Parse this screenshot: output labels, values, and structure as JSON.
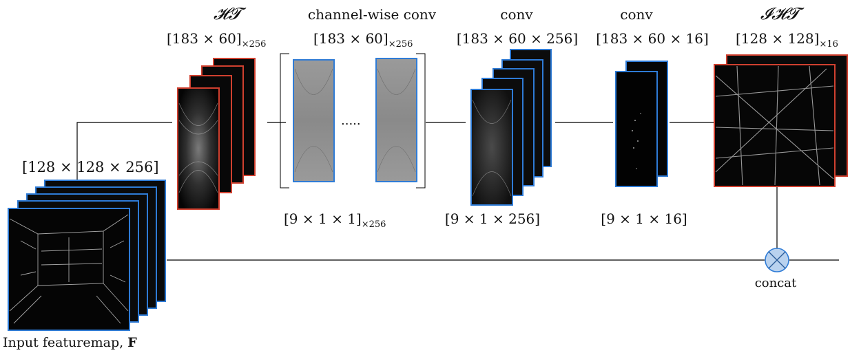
{
  "input": {
    "dims": "[128 × 128 × 256]",
    "caption": "Input featuremap, ",
    "caption_bold": "F"
  },
  "ht": {
    "title": "𝓗𝓣",
    "dims_main": "[183 × 60]",
    "dims_sub": "×256"
  },
  "cwconv": {
    "title": "channel-wise conv",
    "dims_main": "[183 × 60]",
    "dims_sub": "×256",
    "kernel_main": "[9 × 1 × 1]",
    "kernel_sub": "×256",
    "dots": "....."
  },
  "conv1": {
    "title": "conv",
    "dims": "[183 × 60 × 256]",
    "kernel": "[9 × 1 × 256]"
  },
  "conv2": {
    "title": "conv",
    "dims": "[183 × 60 × 16]",
    "kernel": "[9 × 1 × 16]"
  },
  "iht": {
    "title": "𝓘𝓗𝓣",
    "dims_main": "[128 × 128]",
    "dims_sub": "×16"
  },
  "concat": {
    "label": "concat"
  },
  "colors": {
    "blue": "#2e7bd6",
    "red": "#d0402f",
    "line": "#000000",
    "concat_fill": "#b9d2ef"
  }
}
